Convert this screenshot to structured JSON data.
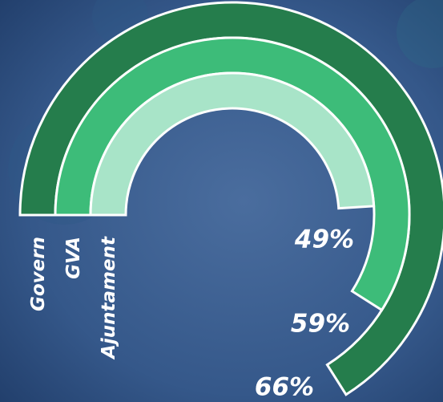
{
  "chart_data": {
    "type": "radial_bar",
    "categories": [
      "Govern",
      "GVA",
      "Ajuntament"
    ],
    "values": [
      66,
      59,
      49
    ],
    "value_labels": [
      "66%",
      "59%",
      "49%"
    ],
    "colors": [
      "#257d4c",
      "#3dbc79",
      "#a8e4c8"
    ],
    "ylim": [
      0,
      100
    ]
  }
}
